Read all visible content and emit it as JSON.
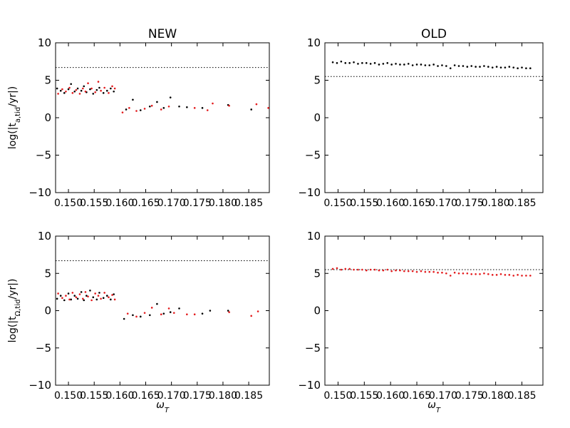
{
  "chart_data": [
    {
      "type": "scatter",
      "title": "NEW",
      "xlabel": "",
      "ylabel": "log(|t_{a,tid}/yr|)",
      "xlim": [
        0.1475,
        0.189
      ],
      "ylim": [
        -10,
        10
      ],
      "xticks": [
        0.15,
        0.155,
        0.16,
        0.165,
        0.17,
        0.175,
        0.18,
        0.185
      ],
      "xtick_labels": [
        "0.150",
        "0.155",
        "0.160",
        "0.165",
        "0.170",
        "0.175",
        "0.180",
        "0.185"
      ],
      "yticks": [
        -10,
        -5,
        0,
        5,
        10
      ],
      "ytick_labels": [
        "−10",
        "−5",
        "0",
        "5",
        "10"
      ],
      "hline": {
        "y": 6.7,
        "style": "dotted",
        "color": "#000000"
      },
      "grid": false,
      "series": [
        {
          "color": "#000000",
          "x": [
            0.1478,
            0.1485,
            0.1492,
            0.15,
            0.1505,
            0.1512,
            0.1518,
            0.1525,
            0.153,
            0.1535,
            0.1542,
            0.1548,
            0.1555,
            0.156,
            0.1568,
            0.1575,
            0.1582,
            0.1588,
            0.1612,
            0.1625,
            0.164,
            0.1658,
            0.1672,
            0.1685,
            0.1698,
            0.1715,
            0.173,
            0.176,
            0.181,
            0.1855
          ],
          "y": [
            3.9,
            3.6,
            3.3,
            3.8,
            4.5,
            3.5,
            3.9,
            3.6,
            4.2,
            3.4,
            3.8,
            3.2,
            3.7,
            4.0,
            3.3,
            3.6,
            3.9,
            3.5,
            1.1,
            2.4,
            1.0,
            1.5,
            2.1,
            1.3,
            2.7,
            1.5,
            1.4,
            1.3,
            1.7,
            1.1
          ]
        },
        {
          "color": "#e31a1c",
          "x": [
            0.148,
            0.1488,
            0.1495,
            0.1502,
            0.1508,
            0.1515,
            0.1522,
            0.1528,
            0.1533,
            0.1538,
            0.1545,
            0.1552,
            0.1558,
            0.1563,
            0.157,
            0.1578,
            0.1585,
            0.159,
            0.1605,
            0.1618,
            0.1632,
            0.1648,
            0.1662,
            0.168,
            0.1695,
            0.1745,
            0.177,
            0.178,
            0.1812,
            0.1865,
            0.1888
          ],
          "y": [
            3.2,
            3.8,
            3.5,
            4.0,
            3.3,
            3.7,
            3.2,
            3.9,
            3.5,
            4.6,
            3.9,
            3.4,
            4.8,
            3.6,
            4.0,
            3.3,
            4.2,
            3.9,
            0.7,
            1.3,
            0.9,
            1.2,
            1.6,
            1.1,
            1.5,
            1.3,
            1.0,
            1.9,
            1.6,
            1.8,
            1.3
          ]
        }
      ]
    },
    {
      "type": "scatter",
      "title": "OLD",
      "xlabel": "",
      "ylabel": "",
      "xlim": [
        0.1475,
        0.189
      ],
      "ylim": [
        -10,
        10
      ],
      "xticks": [
        0.15,
        0.155,
        0.16,
        0.165,
        0.17,
        0.175,
        0.18,
        0.185
      ],
      "xtick_labels": [
        "0.150",
        "0.155",
        "0.160",
        "0.165",
        "0.170",
        "0.175",
        "0.180",
        "0.185"
      ],
      "yticks": [
        -10,
        -5,
        0,
        5,
        10
      ],
      "ytick_labels": [
        "−10",
        "−5",
        "0",
        "5",
        "10"
      ],
      "hline": {
        "y": 5.5,
        "style": "dotted",
        "color": "#000000"
      },
      "grid": false,
      "series": [
        {
          "color": "#000000",
          "x": [
            0.149,
            0.1498,
            0.1506,
            0.1514,
            0.1522,
            0.153,
            0.1538,
            0.1546,
            0.1554,
            0.1562,
            0.157,
            0.1578,
            0.1586,
            0.1594,
            0.1602,
            0.161,
            0.1618,
            0.1626,
            0.1634,
            0.1642,
            0.165,
            0.1658,
            0.1666,
            0.1674,
            0.1682,
            0.169,
            0.1698,
            0.1706,
            0.1714,
            0.1722,
            0.173,
            0.1738,
            0.1746,
            0.1754,
            0.1762,
            0.177,
            0.1778,
            0.1786,
            0.1794,
            0.1802,
            0.181,
            0.1818,
            0.1826,
            0.1834,
            0.1842,
            0.185,
            0.1858,
            0.1866
          ],
          "y": [
            7.4,
            7.3,
            7.5,
            7.3,
            7.3,
            7.4,
            7.2,
            7.3,
            7.3,
            7.2,
            7.3,
            7.1,
            7.2,
            7.3,
            7.1,
            7.2,
            7.1,
            7.1,
            7.2,
            7.0,
            7.1,
            7.1,
            7.0,
            7.0,
            7.1,
            6.9,
            7.0,
            6.9,
            6.6,
            7.0,
            6.9,
            6.9,
            6.8,
            6.9,
            6.8,
            6.8,
            6.9,
            6.8,
            6.7,
            6.8,
            6.7,
            6.7,
            6.8,
            6.7,
            6.6,
            6.7,
            6.6,
            6.6
          ]
        }
      ]
    },
    {
      "type": "scatter",
      "title": "",
      "xlabel": "ω_T",
      "ylabel": "log(|t_{Ω,tid}/yr|)",
      "xlim": [
        0.1475,
        0.189
      ],
      "ylim": [
        -10,
        10
      ],
      "xticks": [
        0.15,
        0.155,
        0.16,
        0.165,
        0.17,
        0.175,
        0.18,
        0.185
      ],
      "xtick_labels": [
        "0.150",
        "0.155",
        "0.160",
        "0.165",
        "0.170",
        "0.175",
        "0.180",
        "0.185"
      ],
      "yticks": [
        -10,
        -5,
        0,
        5,
        10
      ],
      "ytick_labels": [
        "−10",
        "−5",
        "0",
        "5",
        "10"
      ],
      "hline": {
        "y": 6.7,
        "style": "dotted",
        "color": "#000000"
      },
      "grid": false,
      "series": [
        {
          "color": "#000000",
          "x": [
            0.1478,
            0.1485,
            0.1492,
            0.15,
            0.1505,
            0.1512,
            0.1518,
            0.1525,
            0.153,
            0.1535,
            0.1542,
            0.1548,
            0.1555,
            0.156,
            0.1568,
            0.1575,
            0.1582,
            0.1588,
            0.1608,
            0.1625,
            0.164,
            0.1658,
            0.1672,
            0.1685,
            0.1698,
            0.1715,
            0.176,
            0.1775,
            0.181
          ],
          "y": [
            1.6,
            2.0,
            1.4,
            2.3,
            1.5,
            2.0,
            1.6,
            2.5,
            1.4,
            2.0,
            2.7,
            1.8,
            1.5,
            2.4,
            1.7,
            2.0,
            1.5,
            2.2,
            -1.1,
            -0.6,
            -0.8,
            -0.6,
            0.9,
            -0.4,
            -0.2,
            0.3,
            -0.4,
            0.0,
            0.0
          ]
        },
        {
          "color": "#e31a1c",
          "x": [
            0.148,
            0.1488,
            0.1495,
            0.1502,
            0.1508,
            0.1515,
            0.1522,
            0.1528,
            0.1533,
            0.1538,
            0.1545,
            0.1552,
            0.1558,
            0.1563,
            0.157,
            0.1578,
            0.1585,
            0.159,
            0.1615,
            0.1632,
            0.1648,
            0.1662,
            0.168,
            0.1695,
            0.1705,
            0.173,
            0.1745,
            0.1812,
            0.1855,
            0.1868
          ],
          "y": [
            2.3,
            1.7,
            2.0,
            1.5,
            2.4,
            1.8,
            2.2,
            1.6,
            2.5,
            1.9,
            1.4,
            2.3,
            2.0,
            1.6,
            2.4,
            1.8,
            2.1,
            1.5,
            -0.4,
            -0.8,
            -0.3,
            0.4,
            -0.5,
            0.3,
            -0.3,
            -0.5,
            -0.5,
            -0.2,
            -0.7,
            -0.1
          ]
        }
      ]
    },
    {
      "type": "scatter",
      "title": "",
      "xlabel": "ω_T",
      "ylabel": "",
      "xlim": [
        0.1475,
        0.189
      ],
      "ylim": [
        -10,
        10
      ],
      "xticks": [
        0.15,
        0.155,
        0.16,
        0.165,
        0.17,
        0.175,
        0.18,
        0.185
      ],
      "xtick_labels": [
        "0.150",
        "0.155",
        "0.160",
        "0.165",
        "0.170",
        "0.175",
        "0.180",
        "0.185"
      ],
      "yticks": [
        -10,
        -5,
        0,
        5,
        10
      ],
      "ytick_labels": [
        "−10",
        "−5",
        "0",
        "5",
        "10"
      ],
      "hline": {
        "y": 5.5,
        "style": "dotted",
        "color": "#000000"
      },
      "grid": false,
      "series": [
        {
          "color": "#e31a1c",
          "x": [
            0.149,
            0.1498,
            0.1506,
            0.1514,
            0.1522,
            0.153,
            0.1538,
            0.1546,
            0.1554,
            0.1562,
            0.157,
            0.1578,
            0.1586,
            0.1594,
            0.1602,
            0.161,
            0.1618,
            0.1626,
            0.1634,
            0.1642,
            0.165,
            0.1658,
            0.1666,
            0.1674,
            0.1682,
            0.169,
            0.1698,
            0.1706,
            0.1714,
            0.1722,
            0.173,
            0.1738,
            0.1746,
            0.1754,
            0.1762,
            0.177,
            0.1778,
            0.1786,
            0.1794,
            0.1802,
            0.181,
            0.1818,
            0.1826,
            0.1834,
            0.1842,
            0.185,
            0.1858,
            0.1866
          ],
          "y": [
            5.6,
            5.7,
            5.5,
            5.6,
            5.6,
            5.5,
            5.5,
            5.5,
            5.4,
            5.5,
            5.5,
            5.4,
            5.4,
            5.5,
            5.3,
            5.4,
            5.4,
            5.3,
            5.3,
            5.3,
            5.2,
            5.3,
            5.2,
            5.2,
            5.2,
            5.1,
            5.1,
            5.0,
            4.7,
            5.1,
            5.0,
            5.0,
            5.0,
            4.9,
            4.9,
            4.9,
            5.0,
            4.9,
            4.8,
            4.8,
            4.9,
            4.8,
            4.8,
            4.7,
            4.8,
            4.7,
            4.7,
            4.7
          ]
        }
      ]
    }
  ]
}
